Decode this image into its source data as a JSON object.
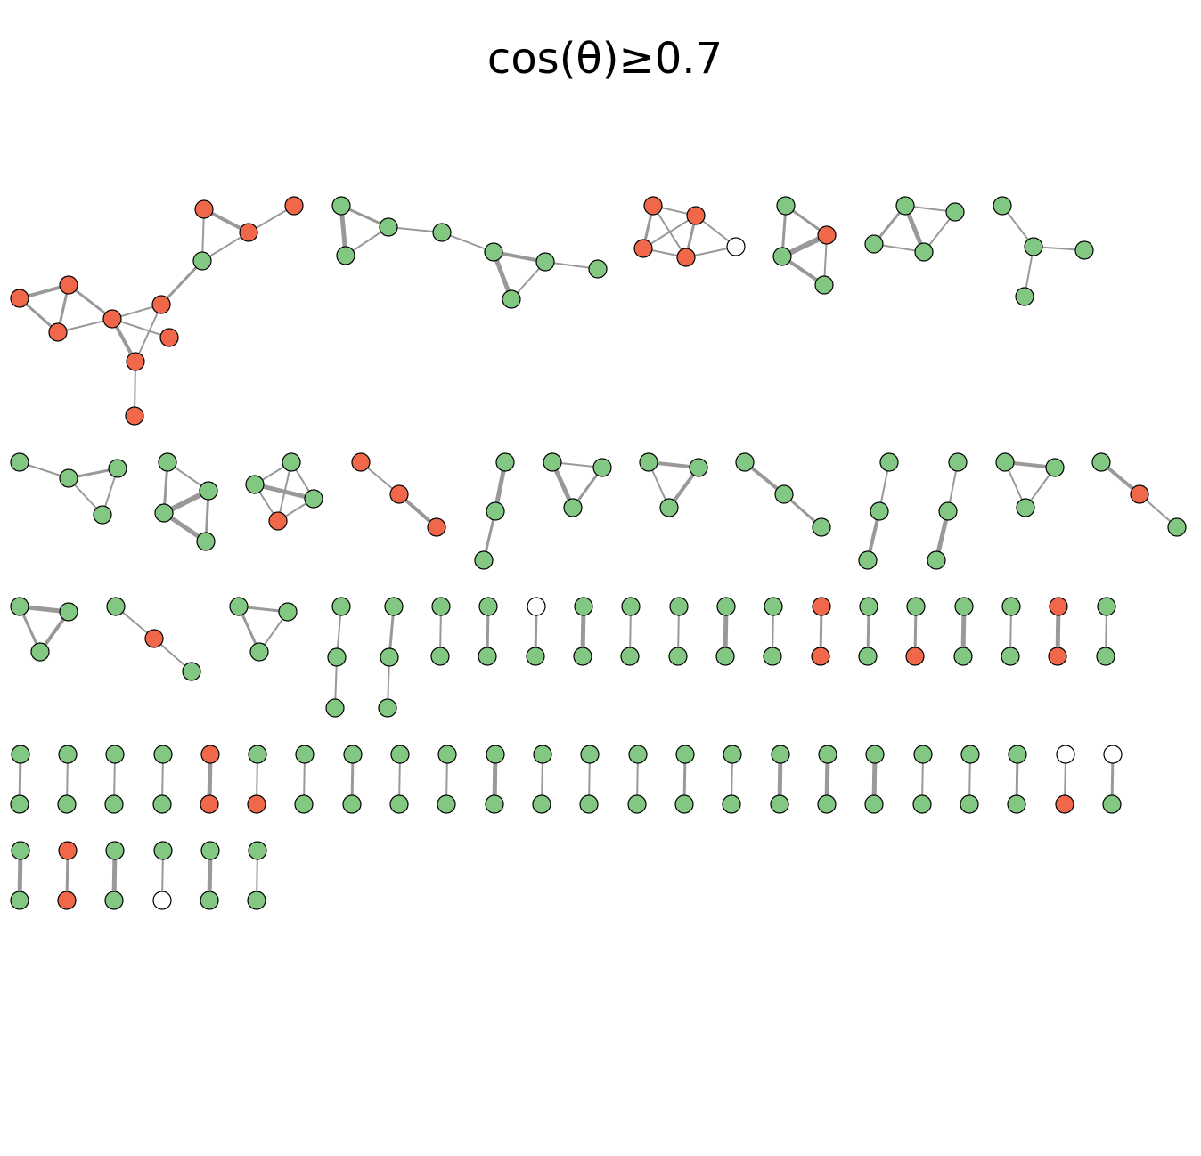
{
  "title": "cos(θ)≥0.7",
  "colors": {
    "green": "#82c882",
    "red": "#f0674a",
    "white": "#ffffff",
    "edge": "#999999",
    "node_stroke": "#000000"
  },
  "legend": {
    "node_colors": [
      "green",
      "red",
      "white"
    ]
  }
}
